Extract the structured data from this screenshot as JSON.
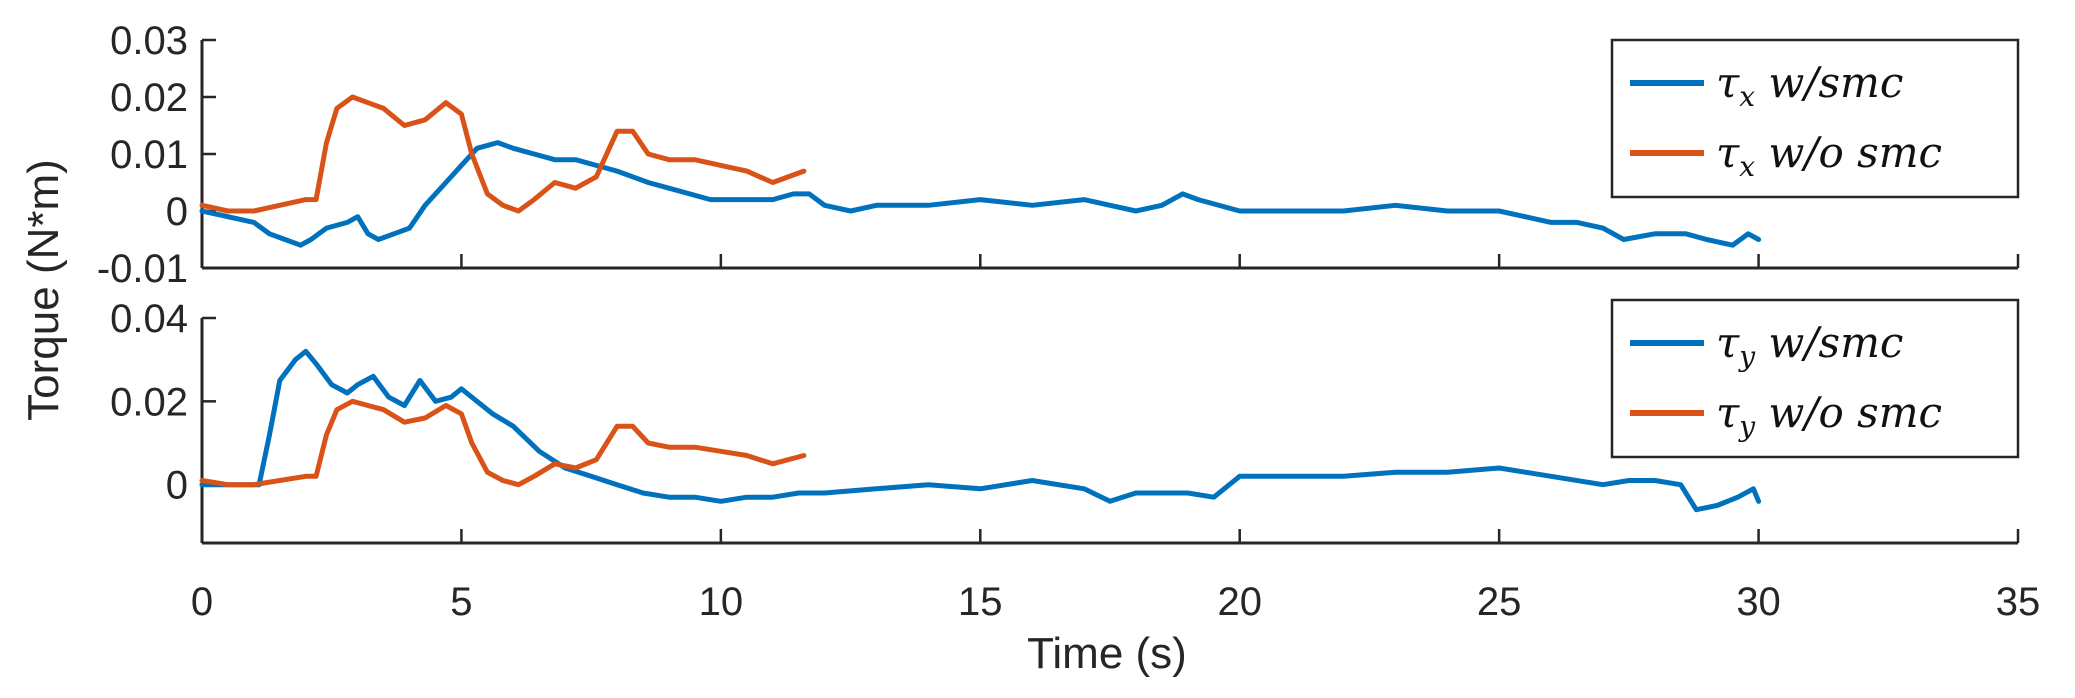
{
  "chart_data": {
    "type": "line",
    "xlabel": "Time (s)",
    "ylabel": "Torque (N*m)",
    "xlim": [
      0,
      35
    ],
    "xticks": [
      "0",
      "5",
      "10",
      "15",
      "20",
      "25",
      "30",
      "35"
    ],
    "xtick_values": [
      0,
      5,
      10,
      15,
      20,
      25,
      30,
      35
    ],
    "colors": {
      "smc": "#0072BD",
      "nosmc": "#D95319",
      "axis": "#262626"
    },
    "panels": [
      {
        "id": "tau-x",
        "ylim": [
          -0.01,
          0.03
        ],
        "yticks": [
          "-0.01",
          "0",
          "0.01",
          "0.02",
          "0.03"
        ],
        "ytick_values": [
          -0.01,
          0,
          0.01,
          0.02,
          0.03
        ],
        "legend_position": "top-right",
        "series": [
          {
            "key": "smc",
            "name": "τx w/smc",
            "legend_symbol": "τ",
            "legend_sub": "x",
            "legend_rest": " w/smc",
            "x": [
              0,
              0.5,
              1.0,
              1.3,
              1.6,
              1.9,
              2.1,
              2.4,
              2.8,
              3.0,
              3.2,
              3.4,
              3.7,
              4.0,
              4.3,
              4.7,
              5.0,
              5.3,
              5.7,
              6.0,
              6.4,
              6.8,
              7.2,
              7.6,
              8.0,
              8.3,
              8.6,
              9.0,
              9.4,
              9.8,
              10.2,
              10.6,
              11.0,
              11.4,
              11.7,
              12.0,
              12.5,
              13.0,
              14.0,
              15.0,
              16.0,
              17.0,
              17.5,
              18.0,
              18.5,
              18.9,
              19.2,
              20.0,
              21.0,
              22.0,
              23.0,
              24.0,
              25.0,
              25.5,
              26.0,
              26.5,
              27.0,
              27.4,
              28.0,
              28.6,
              29.0,
              29.5,
              29.8,
              30.0
            ],
            "y": [
              0.0,
              -0.001,
              -0.002,
              -0.004,
              -0.005,
              -0.006,
              -0.005,
              -0.003,
              -0.002,
              -0.001,
              -0.004,
              -0.005,
              -0.004,
              -0.003,
              0.001,
              0.005,
              0.008,
              0.011,
              0.012,
              0.011,
              0.01,
              0.009,
              0.009,
              0.008,
              0.007,
              0.006,
              0.005,
              0.004,
              0.003,
              0.002,
              0.002,
              0.002,
              0.002,
              0.003,
              0.003,
              0.001,
              0.0,
              0.001,
              0.001,
              0.002,
              0.001,
              0.002,
              0.001,
              0.0,
              0.001,
              0.003,
              0.002,
              0.0,
              0.0,
              0.0,
              0.001,
              0.0,
              0.0,
              -0.001,
              -0.002,
              -0.002,
              -0.003,
              -0.005,
              -0.004,
              -0.004,
              -0.005,
              -0.006,
              -0.004,
              -0.005
            ]
          },
          {
            "key": "nosmc",
            "name": "τx w/o smc",
            "legend_symbol": "τ",
            "legend_sub": "x",
            "legend_rest": " w/o smc",
            "x": [
              0,
              0.5,
              1.0,
              1.5,
              2.0,
              2.2,
              2.4,
              2.6,
              2.9,
              3.2,
              3.5,
              3.9,
              4.3,
              4.7,
              5.0,
              5.2,
              5.5,
              5.8,
              6.1,
              6.4,
              6.8,
              7.2,
              7.6,
              8.0,
              8.3,
              8.6,
              9.0,
              9.5,
              10.0,
              10.5,
              11.0,
              11.6
            ],
            "y": [
              0.001,
              0.0,
              0.0,
              0.001,
              0.002,
              0.002,
              0.012,
              0.018,
              0.02,
              0.019,
              0.018,
              0.015,
              0.016,
              0.019,
              0.017,
              0.01,
              0.003,
              0.001,
              0.0,
              0.002,
              0.005,
              0.004,
              0.006,
              0.014,
              0.014,
              0.01,
              0.009,
              0.009,
              0.008,
              0.007,
              0.005,
              0.007
            ]
          }
        ]
      },
      {
        "id": "tau-y",
        "ylim": [
          -0.014,
          0.04
        ],
        "yticks": [
          "0",
          "0.02",
          "0.04"
        ],
        "ytick_values": [
          0,
          0.02,
          0.04
        ],
        "legend_position": "top-right",
        "series": [
          {
            "key": "smc",
            "name": "τy w/smc",
            "legend_symbol": "τ",
            "legend_sub": "y",
            "legend_rest": " w/smc",
            "x": [
              0,
              0.5,
              1.0,
              1.1,
              1.3,
              1.5,
              1.8,
              2.0,
              2.2,
              2.5,
              2.8,
              3.0,
              3.3,
              3.6,
              3.9,
              4.2,
              4.5,
              4.8,
              5.0,
              5.3,
              5.6,
              6.0,
              6.5,
              7.0,
              7.5,
              8.0,
              8.5,
              9.0,
              9.5,
              10.0,
              10.5,
              11.0,
              11.5,
              12.0,
              13.0,
              14.0,
              15.0,
              16.0,
              17.0,
              17.5,
              18.0,
              19.0,
              19.5,
              20.0,
              21.0,
              22.0,
              23.0,
              24.0,
              25.0,
              26.0,
              27.0,
              27.5,
              28.0,
              28.5,
              28.8,
              29.2,
              29.6,
              29.9,
              30.0
            ],
            "y": [
              0.0,
              0.0,
              0.0,
              0.0,
              0.012,
              0.025,
              0.03,
              0.032,
              0.029,
              0.024,
              0.022,
              0.024,
              0.026,
              0.021,
              0.019,
              0.025,
              0.02,
              0.021,
              0.023,
              0.02,
              0.017,
              0.014,
              0.008,
              0.004,
              0.002,
              0.0,
              -0.002,
              -0.003,
              -0.003,
              -0.004,
              -0.003,
              -0.003,
              -0.002,
              -0.002,
              -0.001,
              0.0,
              -0.001,
              0.001,
              -0.001,
              -0.004,
              -0.002,
              -0.002,
              -0.003,
              0.002,
              0.002,
              0.002,
              0.003,
              0.003,
              0.004,
              0.002,
              0.0,
              0.001,
              0.001,
              0.0,
              -0.006,
              -0.005,
              -0.003,
              -0.001,
              -0.004
            ]
          },
          {
            "key": "nosmc",
            "name": "τy w/o smc",
            "legend_symbol": "τ",
            "legend_sub": "y",
            "legend_rest": " w/o smc",
            "x": [
              0,
              0.5,
              1.0,
              1.5,
              2.0,
              2.2,
              2.4,
              2.6,
              2.9,
              3.2,
              3.5,
              3.9,
              4.3,
              4.7,
              5.0,
              5.2,
              5.5,
              5.8,
              6.1,
              6.4,
              6.8,
              7.2,
              7.6,
              8.0,
              8.3,
              8.6,
              9.0,
              9.5,
              10.0,
              10.5,
              11.0,
              11.6
            ],
            "y": [
              0.001,
              0.0,
              0.0,
              0.001,
              0.002,
              0.002,
              0.012,
              0.018,
              0.02,
              0.019,
              0.018,
              0.015,
              0.016,
              0.019,
              0.017,
              0.01,
              0.003,
              0.001,
              0.0,
              0.002,
              0.005,
              0.004,
              0.006,
              0.014,
              0.014,
              0.01,
              0.009,
              0.009,
              0.008,
              0.007,
              0.005,
              0.007
            ]
          }
        ]
      }
    ]
  }
}
